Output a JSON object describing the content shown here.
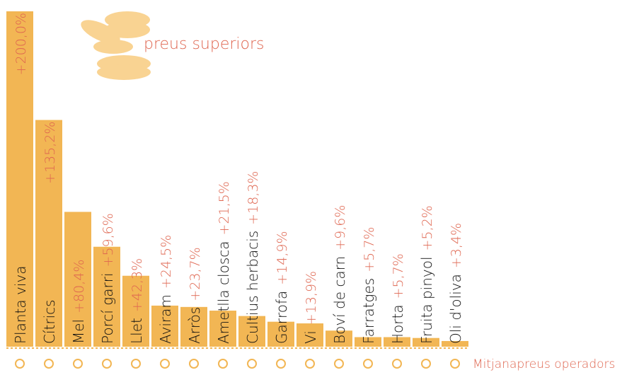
{
  "chart_data": {
    "type": "bar",
    "annotation": "preus superiors",
    "footer": "Mitjanapreus operadors",
    "categories": [
      "Planta viva",
      "Cítrics",
      "Mel",
      "Porcí garri",
      "Llet",
      "Aviram",
      "Arròs",
      "Ametlla closca",
      "Cultius herbacis",
      "Garrofa",
      "Vi",
      "Boví de carn",
      "Farratges",
      "Horta",
      "Fruita pinyol",
      "Oli d'oliva"
    ],
    "values": [
      200.0,
      135.2,
      80.4,
      59.6,
      42.3,
      24.5,
      23.7,
      21.5,
      18.3,
      14.9,
      13.9,
      9.6,
      5.7,
      5.7,
      5.2,
      3.4
    ],
    "value_labels": [
      "+200,0%",
      "+135,2%",
      "+80,4%",
      "+59,6%",
      "+42,3%",
      "+24,5%",
      "+23,7%",
      "+21,5%",
      "+18,3%",
      "+14,9%",
      "+13,9%",
      "+9,6%",
      "+5,7%",
      "+5,7%",
      "+5,2%",
      "+3,4%"
    ],
    "color": "#f2b654",
    "label_color": "#df6650",
    "ylim": [
      0,
      200
    ]
  }
}
